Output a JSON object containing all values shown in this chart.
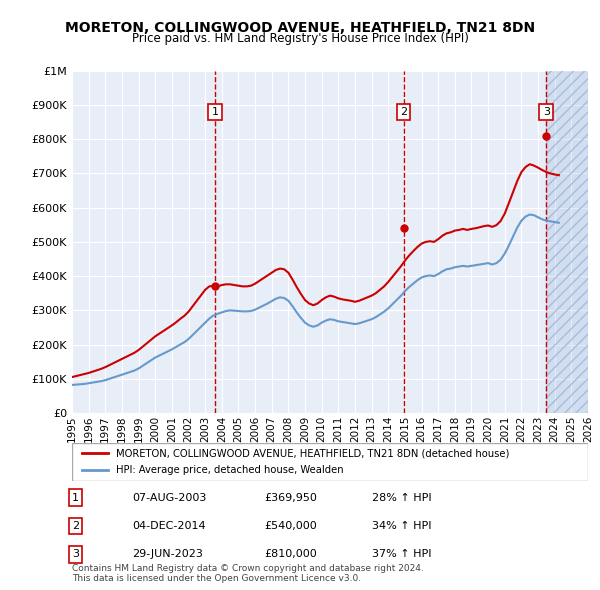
{
  "title": "MORETON, COLLINGWOOD AVENUE, HEATHFIELD, TN21 8DN",
  "subtitle": "Price paid vs. HM Land Registry's House Price Index (HPI)",
  "ylabel": "",
  "xlim_years": [
    1995,
    2026
  ],
  "ylim": [
    0,
    1000000
  ],
  "yticks": [
    0,
    100000,
    200000,
    300000,
    400000,
    500000,
    600000,
    700000,
    800000,
    900000,
    1000000
  ],
  "ytick_labels": [
    "£0",
    "£100K",
    "£200K",
    "£300K",
    "£400K",
    "£500K",
    "£600K",
    "£700K",
    "£800K",
    "£900K",
    "£1M"
  ],
  "xtick_years": [
    1995,
    1996,
    1997,
    1998,
    1999,
    2000,
    2001,
    2002,
    2003,
    2004,
    2005,
    2006,
    2007,
    2008,
    2009,
    2010,
    2011,
    2012,
    2013,
    2014,
    2015,
    2016,
    2017,
    2018,
    2019,
    2020,
    2021,
    2022,
    2023,
    2024,
    2025,
    2026
  ],
  "sale_dates": [
    2003.6,
    2014.92,
    2023.49
  ],
  "sale_prices": [
    369950,
    540000,
    810000
  ],
  "sale_labels": [
    "1",
    "2",
    "3"
  ],
  "sale_date_strs": [
    "07-AUG-2003",
    "04-DEC-2014",
    "29-JUN-2023"
  ],
  "sale_pct_hpi": [
    "28%",
    "34%",
    "37%"
  ],
  "hpi_line_color": "#6699cc",
  "price_line_color": "#cc0000",
  "vline_color": "#cc0000",
  "marker_box_color": "#cc0000",
  "legend_label_red": "MORETON, COLLINGWOOD AVENUE, HEATHFIELD, TN21 8DN (detached house)",
  "legend_label_blue": "HPI: Average price, detached house, Wealden",
  "footer": "Contains HM Land Registry data © Crown copyright and database right 2024.\nThis data is licensed under the Open Government Licence v3.0.",
  "hpi_data_x": [
    1995.0,
    1995.25,
    1995.5,
    1995.75,
    1996.0,
    1996.25,
    1996.5,
    1996.75,
    1997.0,
    1997.25,
    1997.5,
    1997.75,
    1998.0,
    1998.25,
    1998.5,
    1998.75,
    1999.0,
    1999.25,
    1999.5,
    1999.75,
    2000.0,
    2000.25,
    2000.5,
    2000.75,
    2001.0,
    2001.25,
    2001.5,
    2001.75,
    2002.0,
    2002.25,
    2002.5,
    2002.75,
    2003.0,
    2003.25,
    2003.5,
    2003.75,
    2004.0,
    2004.25,
    2004.5,
    2004.75,
    2005.0,
    2005.25,
    2005.5,
    2005.75,
    2006.0,
    2006.25,
    2006.5,
    2006.75,
    2007.0,
    2007.25,
    2007.5,
    2007.75,
    2008.0,
    2008.25,
    2008.5,
    2008.75,
    2009.0,
    2009.25,
    2009.5,
    2009.75,
    2010.0,
    2010.25,
    2010.5,
    2010.75,
    2011.0,
    2011.25,
    2011.5,
    2011.75,
    2012.0,
    2012.25,
    2012.5,
    2012.75,
    2013.0,
    2013.25,
    2013.5,
    2013.75,
    2014.0,
    2014.25,
    2014.5,
    2014.75,
    2015.0,
    2015.25,
    2015.5,
    2015.75,
    2016.0,
    2016.25,
    2016.5,
    2016.75,
    2017.0,
    2017.25,
    2017.5,
    2017.75,
    2018.0,
    2018.25,
    2018.5,
    2018.75,
    2019.0,
    2019.25,
    2019.5,
    2019.75,
    2020.0,
    2020.25,
    2020.5,
    2020.75,
    2021.0,
    2021.25,
    2021.5,
    2021.75,
    2022.0,
    2022.25,
    2022.5,
    2022.75,
    2023.0,
    2023.25,
    2023.5,
    2023.75,
    2024.0,
    2024.25
  ],
  "hpi_data_y": [
    82000,
    83000,
    84000,
    85000,
    87000,
    89000,
    91000,
    93000,
    96000,
    100000,
    104000,
    108000,
    112000,
    116000,
    120000,
    124000,
    130000,
    138000,
    146000,
    154000,
    162000,
    168000,
    174000,
    180000,
    186000,
    193000,
    200000,
    207000,
    216000,
    228000,
    240000,
    252000,
    264000,
    276000,
    285000,
    290000,
    294000,
    298000,
    300000,
    299000,
    298000,
    297000,
    297000,
    298000,
    302000,
    308000,
    314000,
    320000,
    327000,
    334000,
    338000,
    336000,
    328000,
    312000,
    294000,
    278000,
    264000,
    256000,
    252000,
    256000,
    264000,
    270000,
    274000,
    272000,
    268000,
    266000,
    264000,
    262000,
    260000,
    262000,
    266000,
    270000,
    274000,
    280000,
    288000,
    296000,
    306000,
    318000,
    330000,
    342000,
    356000,
    368000,
    378000,
    388000,
    396000,
    400000,
    402000,
    400000,
    406000,
    414000,
    420000,
    422000,
    426000,
    428000,
    430000,
    428000,
    430000,
    432000,
    434000,
    436000,
    438000,
    434000,
    438000,
    448000,
    466000,
    490000,
    516000,
    542000,
    562000,
    574000,
    580000,
    578000,
    572000,
    566000,
    562000,
    560000,
    558000,
    556000
  ],
  "price_data_x": [
    1995.0,
    1995.25,
    1995.5,
    1995.75,
    1996.0,
    1996.25,
    1996.5,
    1996.75,
    1997.0,
    1997.25,
    1997.5,
    1997.75,
    1998.0,
    1998.25,
    1998.5,
    1998.75,
    1999.0,
    1999.25,
    1999.5,
    1999.75,
    2000.0,
    2000.25,
    2000.5,
    2000.75,
    2001.0,
    2001.25,
    2001.5,
    2001.75,
    2002.0,
    2002.25,
    2002.5,
    2002.75,
    2003.0,
    2003.25,
    2003.5,
    2003.75,
    2004.0,
    2004.25,
    2004.5,
    2004.75,
    2005.0,
    2005.25,
    2005.5,
    2005.75,
    2006.0,
    2006.25,
    2006.5,
    2006.75,
    2007.0,
    2007.25,
    2007.5,
    2007.75,
    2008.0,
    2008.25,
    2008.5,
    2008.75,
    2009.0,
    2009.25,
    2009.5,
    2009.75,
    2010.0,
    2010.25,
    2010.5,
    2010.75,
    2011.0,
    2011.25,
    2011.5,
    2011.75,
    2012.0,
    2012.25,
    2012.5,
    2012.75,
    2013.0,
    2013.25,
    2013.5,
    2013.75,
    2014.0,
    2014.25,
    2014.5,
    2014.75,
    2015.0,
    2015.25,
    2015.5,
    2015.75,
    2016.0,
    2016.25,
    2016.5,
    2016.75,
    2017.0,
    2017.25,
    2017.5,
    2017.75,
    2018.0,
    2018.25,
    2018.5,
    2018.75,
    2019.0,
    2019.25,
    2019.5,
    2019.75,
    2020.0,
    2020.25,
    2020.5,
    2020.75,
    2021.0,
    2021.25,
    2021.5,
    2021.75,
    2022.0,
    2022.25,
    2022.5,
    2022.75,
    2023.0,
    2023.25,
    2023.5,
    2023.75,
    2024.0,
    2024.25
  ],
  "price_data_y": [
    105000,
    108000,
    111000,
    114000,
    117000,
    121000,
    125000,
    129000,
    134000,
    140000,
    146000,
    152000,
    158000,
    164000,
    170000,
    176000,
    184000,
    194000,
    204000,
    214000,
    224000,
    232000,
    240000,
    248000,
    256000,
    265000,
    275000,
    284000,
    296000,
    312000,
    328000,
    344000,
    360000,
    370000,
    372000,
    370000,
    374000,
    376000,
    376000,
    374000,
    372000,
    370000,
    370000,
    372000,
    378000,
    386000,
    394000,
    402000,
    410000,
    418000,
    422000,
    420000,
    410000,
    390000,
    368000,
    348000,
    330000,
    320000,
    315000,
    320000,
    330000,
    338000,
    343000,
    340000,
    335000,
    332000,
    330000,
    328000,
    325000,
    328000,
    333000,
    338000,
    343000,
    350000,
    360000,
    370000,
    383000,
    398000,
    413000,
    428000,
    445000,
    460000,
    473000,
    485000,
    495000,
    500000,
    502000,
    500000,
    508000,
    518000,
    525000,
    528000,
    533000,
    535000,
    538000,
    535000,
    538000,
    540000,
    543000,
    546000,
    548000,
    544000,
    549000,
    561000,
    583000,
    614000,
    646000,
    678000,
    704000,
    719000,
    727000,
    723000,
    717000,
    710000,
    704000,
    700000,
    697000,
    695000
  ],
  "shaded_region_start": 2023.49,
  "shaded_region_end": 2026.0,
  "background_color": "#ffffff",
  "plot_bg_color": "#e8eef8",
  "grid_color": "#ffffff"
}
